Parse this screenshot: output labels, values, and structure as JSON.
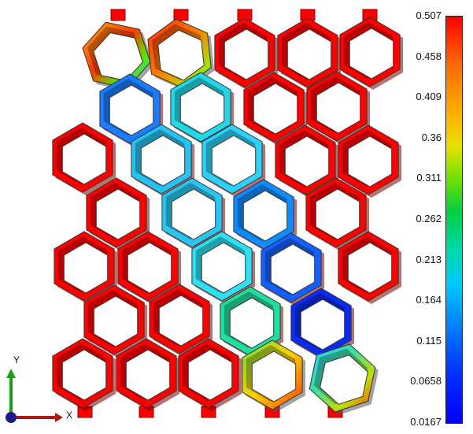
{
  "legend": {
    "labels": [
      "0.507",
      "0.458",
      "0.409",
      "0.36",
      "0.311",
      "0.262",
      "0.213",
      "0.164",
      "0.115",
      "0.0658",
      "0.0167"
    ]
  },
  "triad": {
    "x_label": "X",
    "y_label": "Y"
  },
  "colors": {
    "max": "#ff0000",
    "min": "#0000ff",
    "edge": "#8a0000",
    "background": "#ffffff"
  }
}
